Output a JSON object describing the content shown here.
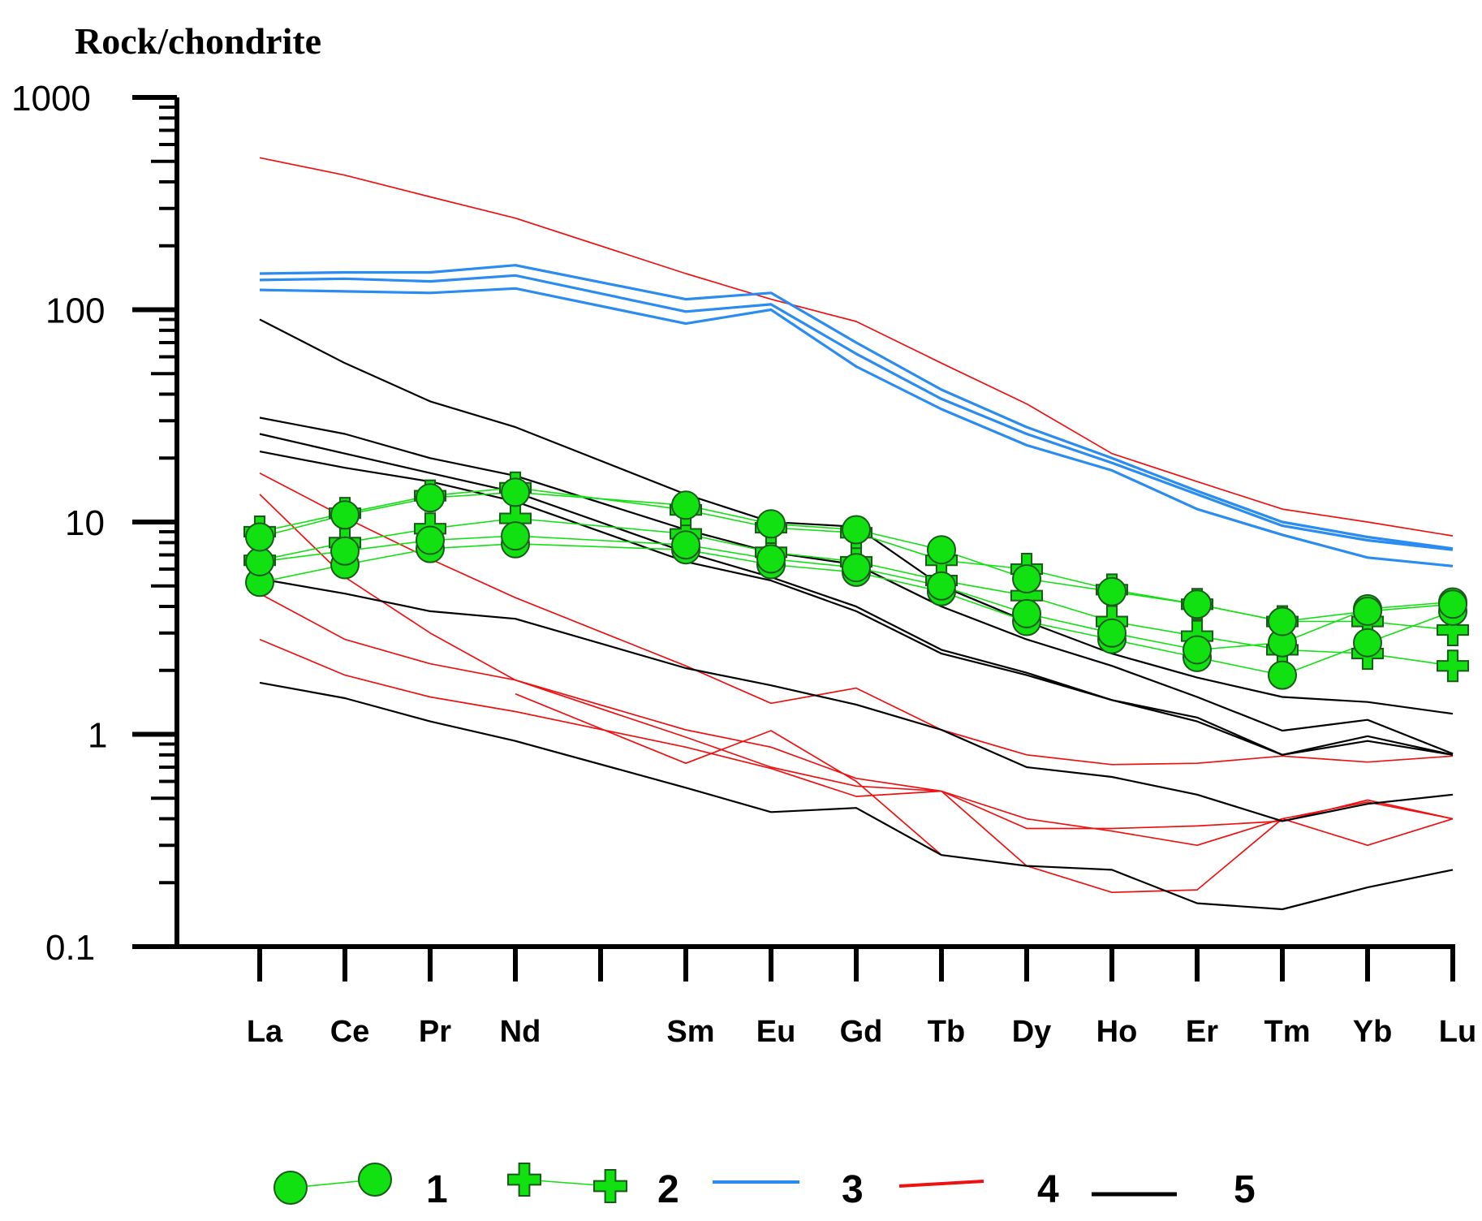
{
  "chart_data": {
    "type": "line",
    "ylabel": "Rock/chondrite",
    "yscale": "log",
    "ylim": [
      0.1,
      1000
    ],
    "ytick_labels": [
      "0.1",
      "1",
      "10",
      "100",
      "1000"
    ],
    "x": [
      "La",
      "Ce",
      "Pr",
      "Nd",
      "",
      "Sm",
      "Eu",
      "Gd",
      "Tb",
      "Dy",
      "Ho",
      "Er",
      "Tm",
      "Yb",
      "Lu"
    ],
    "grid": false,
    "legend_position": "bottom",
    "legend": [
      {
        "label": "1",
        "color": "#11e011",
        "marker": "circle"
      },
      {
        "label": "2",
        "color": "#11e011",
        "marker": "plus"
      },
      {
        "label": "3",
        "color": "#2a8cf0",
        "marker": "none"
      },
      {
        "label": "4",
        "color": "#ee1111",
        "marker": "none"
      },
      {
        "label": "5",
        "color": "#000000",
        "marker": "none"
      }
    ],
    "series": [
      {
        "group": "1",
        "values": [
          5.2,
          6.3,
          7.5,
          7.9,
          null,
          7.4,
          6.3,
          5.8,
          4.7,
          3.4,
          2.8,
          2.3,
          1.9,
          2.7,
          3.8
        ]
      },
      {
        "group": "1",
        "values": [
          6.5,
          7.3,
          8.2,
          8.6,
          null,
          7.8,
          6.7,
          6.1,
          5.0,
          3.7,
          3.0,
          2.5,
          2.7,
          3.9,
          4.2
        ]
      },
      {
        "group": "1",
        "values": [
          8.5,
          10.8,
          13.0,
          13.8,
          null,
          12.0,
          9.8,
          9.2,
          7.4,
          5.4,
          4.7,
          4.1,
          3.4,
          3.8,
          4.1
        ]
      },
      {
        "group": "2",
        "values": [
          6.6,
          8.0,
          9.3,
          10.4,
          null,
          8.8,
          7.2,
          6.5,
          5.3,
          4.5,
          3.4,
          2.9,
          2.5,
          2.4,
          2.1
        ]
      },
      {
        "group": "2",
        "values": [
          9.0,
          11.0,
          13.3,
          14.5,
          null,
          11.4,
          9.4,
          8.9,
          6.6,
          6.0,
          4.8,
          4.1,
          3.4,
          3.4,
          3.1
        ]
      },
      {
        "group": "3",
        "values": [
          148,
          150,
          150,
          162,
          null,
          112,
          120,
          70,
          42,
          28,
          20,
          14,
          10,
          8.5,
          7.5
        ]
      },
      {
        "group": "3",
        "values": [
          138,
          140,
          136,
          145,
          null,
          98,
          106,
          62,
          38,
          26,
          19,
          13.5,
          9.6,
          8.2,
          7.4
        ]
      },
      {
        "group": "3",
        "values": [
          124,
          122,
          120,
          126,
          null,
          86,
          100,
          54,
          34,
          23,
          17.5,
          11.5,
          8.7,
          6.8,
          6.2
        ]
      },
      {
        "group": "4",
        "values": [
          520,
          430,
          340,
          270,
          null,
          148,
          112,
          88,
          56,
          36,
          21,
          15.5,
          11.5,
          10,
          8.6
        ]
      },
      {
        "group": "4",
        "values": [
          17,
          10.5,
          6.7,
          4.4,
          null,
          2.1,
          1.4,
          1.65,
          1.05,
          0.8,
          0.72,
          0.73,
          0.79,
          0.74,
          0.79
        ]
      },
      {
        "group": "4",
        "values": [
          13.5,
          5.5,
          3.0,
          1.8,
          null,
          0.97,
          0.7,
          0.57,
          0.54,
          0.36,
          0.36,
          0.37,
          0.39,
          0.49,
          0.4
        ]
      },
      {
        "group": "4",
        "values": [
          4.6,
          2.8,
          2.15,
          1.8,
          null,
          1.05,
          0.87,
          0.62,
          0.54,
          0.4,
          0.35,
          0.3,
          0.4,
          0.3,
          0.4
        ]
      },
      {
        "group": "4",
        "values": [
          2.8,
          1.9,
          1.5,
          1.28,
          null,
          0.87,
          0.69,
          0.51,
          0.54,
          0.24,
          0.18,
          0.185,
          0.4,
          0.48,
          0.4
        ]
      },
      {
        "group": "4",
        "values": [
          null,
          null,
          null,
          1.55,
          null,
          0.73,
          1.04,
          0.6,
          0.27,
          null,
          null,
          null,
          null,
          null,
          null
        ]
      },
      {
        "group": "5",
        "values": [
          90,
          56,
          37,
          28,
          null,
          13.5,
          10,
          9.5,
          5.0,
          3.4,
          2.4,
          1.85,
          1.5,
          1.42,
          1.25
        ]
      },
      {
        "group": "5",
        "values": [
          31,
          26,
          20,
          16.5,
          null,
          9.2,
          7.2,
          6.3,
          4.0,
          2.8,
          2.1,
          1.5,
          1.04,
          1.17,
          0.81
        ]
      },
      {
        "group": "5",
        "values": [
          26,
          21,
          17,
          13.8,
          null,
          7.2,
          5.5,
          4.0,
          2.5,
          1.95,
          1.45,
          1.2,
          0.8,
          0.98,
          0.8
        ]
      },
      {
        "group": "5",
        "values": [
          21.5,
          18,
          15.5,
          12.5,
          null,
          6.5,
          5.3,
          3.8,
          2.4,
          1.9,
          1.45,
          1.15,
          0.8,
          0.93,
          0.8
        ]
      },
      {
        "group": "5",
        "values": [
          5.4,
          4.6,
          3.8,
          3.5,
          null,
          2.05,
          1.7,
          1.38,
          1.05,
          0.7,
          0.63,
          0.52,
          0.39,
          0.47,
          0.52
        ]
      },
      {
        "group": "5",
        "values": [
          1.75,
          1.48,
          1.15,
          0.93,
          null,
          0.56,
          0.43,
          0.45,
          0.27,
          0.24,
          0.23,
          0.16,
          0.15,
          0.19,
          0.23
        ]
      }
    ]
  }
}
